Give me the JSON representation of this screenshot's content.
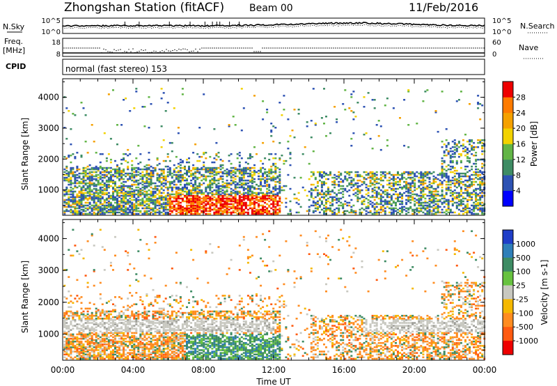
{
  "header": {
    "title": "Zhongshan Station (fitACF)",
    "beam": "Beam 00",
    "date": "11/Feb/2016"
  },
  "nsky_panel": {
    "left_label": "N.Sky",
    "right_label": "N.Search",
    "left_ticks": [
      "10^5",
      "10^0"
    ],
    "right_ticks": [
      "10^5",
      "10^0"
    ]
  },
  "freq_panel": {
    "left_label_1": "Freq.",
    "left_label_2": "[MHz]",
    "right_label": "Nave",
    "left_ticks": [
      "18",
      "8"
    ],
    "right_ticks": [
      "60",
      "0"
    ]
  },
  "cpid": {
    "label": "CPID",
    "text": "normal (fast stereo) 153"
  },
  "chart_data": [
    {
      "type": "heatmap",
      "name": "power",
      "ylabel": "Slant Range [km]",
      "ylim": [
        180,
        4600
      ],
      "yticks": [
        1000,
        2000,
        3000,
        4000
      ],
      "xlim": [
        0,
        24
      ],
      "colorbar": {
        "label": "Power [dB]",
        "ticks": [
          "4",
          "8",
          "12",
          "16",
          "20",
          "24",
          "28"
        ],
        "colors": [
          "#0000ff",
          "#2d52b3",
          "#3e8c64",
          "#62b546",
          "#f2d200",
          "#f5a100",
          "#ff7b00",
          "#ee0000"
        ]
      }
    },
    {
      "type": "heatmap",
      "name": "velocity",
      "ylabel": "Slant Range [km]",
      "ylim": [
        180,
        4600
      ],
      "yticks": [
        1000,
        2000,
        3000,
        4000
      ],
      "xlim": [
        0,
        24
      ],
      "colorbar": {
        "label": "Velocity [m s-1]",
        "ticks": [
          "1000",
          "500",
          "100",
          "25",
          "-25",
          "-100",
          "-500",
          "-1000"
        ],
        "colors": [
          "#1f3ec8",
          "#2f7fb9",
          "#3e8c64",
          "#67c23f",
          "#c8c8c0",
          "#f5b800",
          "#ff8c20",
          "#ff5a10",
          "#ee0000"
        ]
      }
    }
  ],
  "xaxis": {
    "label": "Time UT",
    "ticks": [
      "00:00",
      "04:00",
      "08:00",
      "12:00",
      "16:00",
      "20:00",
      "00:00"
    ]
  }
}
